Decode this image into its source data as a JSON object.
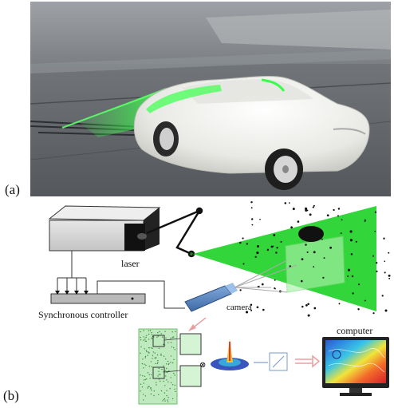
{
  "panels": {
    "a_label": "(a)",
    "b_label": "(b)"
  },
  "diagram": {
    "laser_label": "laser",
    "controller_label": "Synchronous  controller",
    "camera_label": "camera",
    "computer_label": "computer"
  },
  "colors": {
    "laser_green": "#22d93a",
    "car_body": "#f2f2ef",
    "floor": "#6f7377"
  }
}
